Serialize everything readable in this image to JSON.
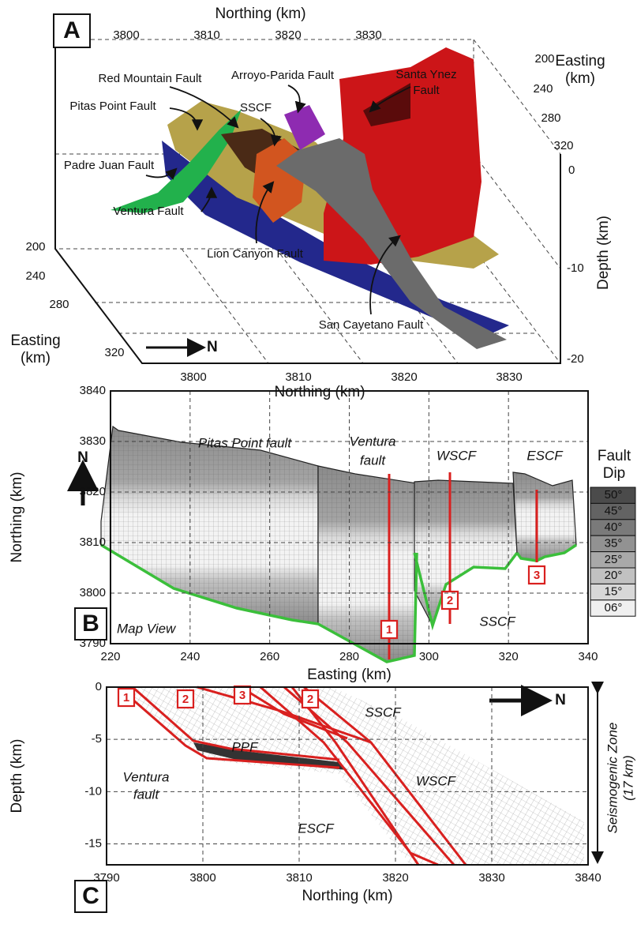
{
  "panel_a": {
    "label": "A",
    "top_axis_title": "Northing (km)",
    "top_ticks": [
      3800,
      3810,
      3820,
      3830
    ],
    "bottom_axis_title": "Northing (km)",
    "bottom_ticks": [
      3800,
      3810,
      3820,
      3830
    ],
    "right_easting_title": [
      "Easting",
      "(km)"
    ],
    "right_easting_ticks": [
      200,
      240,
      280,
      320
    ],
    "left_easting_title": [
      "Easting",
      "(km)"
    ],
    "left_easting_ticks": [
      200,
      240,
      280,
      320
    ],
    "depth_title": "Depth (km)",
    "depth_ticks": [
      0,
      -10,
      -20
    ],
    "north_arrow": "N",
    "faults": [
      [
        "Red Mountain Fault"
      ],
      [
        "Arroyo-Parida Fault"
      ],
      [
        "Santa Ynez",
        "Fault"
      ],
      [
        "Pitas Point Fault"
      ],
      [
        "SSCF"
      ],
      [
        "Padre Juan Fault"
      ],
      [
        "Ventura Fault"
      ],
      [
        "Lion Canyon Fault"
      ],
      [
        "San Cayetano Fault"
      ]
    ]
  },
  "panel_b": {
    "label": "B",
    "xlim": [
      220,
      340
    ],
    "ylim": [
      3790,
      3840
    ],
    "xticks": [
      220,
      240,
      260,
      280,
      300,
      320,
      340
    ],
    "yticks": [
      3790,
      3800,
      3810,
      3820,
      3830,
      3840
    ],
    "x_title": "Easting (km)",
    "y_title": "Northing (km)",
    "north_arrow": "N",
    "view_label": "Map View",
    "fault_labels": [
      [
        "Pitas Point fault"
      ],
      [
        "Ventura",
        "fault"
      ],
      [
        "WSCF"
      ],
      [
        "ESCF"
      ],
      [
        "SSCF"
      ]
    ],
    "markers": [
      "1",
      "2",
      "3"
    ],
    "legend": {
      "title": [
        "Fault",
        "Dip"
      ],
      "items": [
        "50°",
        "45°",
        "40°",
        "35°",
        "25°",
        "20°",
        "15°",
        "06°"
      ]
    }
  },
  "panel_c": {
    "label": "C",
    "xlim": [
      3790,
      3840
    ],
    "ylim": [
      -17,
      0
    ],
    "xticks": [
      3790,
      3800,
      3810,
      3820,
      3830,
      3840
    ],
    "yticks": [
      0,
      -5,
      -10,
      -15
    ],
    "x_title": "Northing (km)",
    "y_title": "Depth (km)",
    "north_arrow": "N",
    "fault_labels": [
      [
        "PPF"
      ],
      [
        "SSCF"
      ],
      [
        "WSCF"
      ],
      [
        "Ventura",
        "fault"
      ],
      [
        "ESCF"
      ]
    ],
    "markers": [
      "1",
      "2",
      "3",
      "2"
    ],
    "zone": [
      "Seismogenic Zone",
      "(17 km)"
    ]
  }
}
